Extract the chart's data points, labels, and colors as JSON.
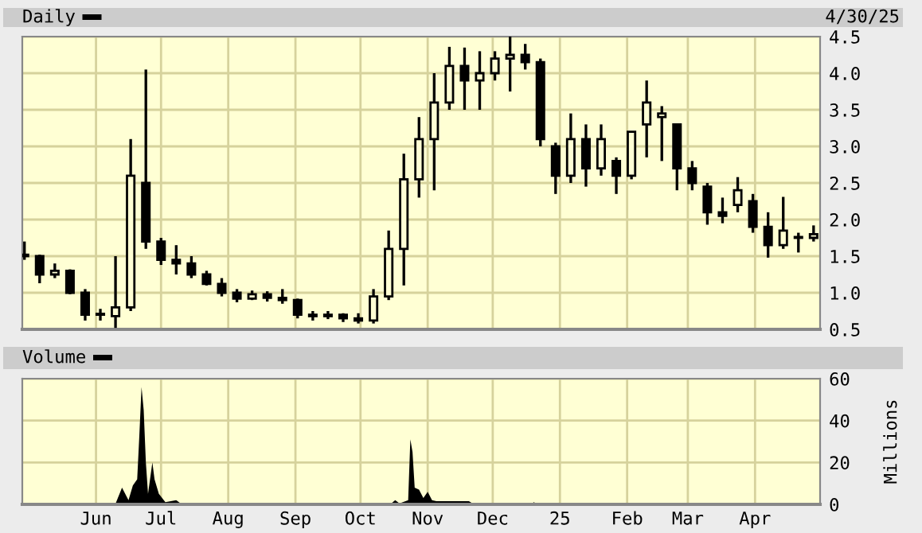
{
  "chart_data": [
    {
      "type": "candlestick",
      "title": "Daily",
      "color": "#000000",
      "grid": true,
      "tick_labels": "y",
      "annotations": [
        "4/30/25"
      ],
      "x": [
        "2024-04-29",
        "2024-05-06",
        "2024-05-13",
        "2024-05-20",
        "2024-05-27",
        "2024-06-03",
        "2024-06-10",
        "2024-06-17",
        "2024-06-24",
        "2024-07-01",
        "2024-07-08",
        "2024-07-15",
        "2024-07-22",
        "2024-07-29",
        "2024-08-05",
        "2024-08-12",
        "2024-08-19",
        "2024-08-26",
        "2024-09-02",
        "2024-09-09",
        "2024-09-16",
        "2024-09-23",
        "2024-09-30",
        "2024-10-07",
        "2024-10-14",
        "2024-10-21",
        "2024-10-28",
        "2024-11-04",
        "2024-11-11",
        "2024-11-18",
        "2024-11-25",
        "2024-12-02",
        "2024-12-09",
        "2024-12-16",
        "2024-12-23",
        "2024-12-30",
        "2025-01-06",
        "2025-01-13",
        "2025-01-20",
        "2025-01-27",
        "2025-02-03",
        "2025-02-10",
        "2025-02-17",
        "2025-02-24",
        "2025-03-03",
        "2025-03-10",
        "2025-03-17",
        "2025-03-24",
        "2025-03-31",
        "2025-04-07",
        "2025-04-14",
        "2025-04-21",
        "2025-04-28"
      ],
      "ohlc": [
        [
          1.5,
          1.7,
          1.45,
          1.52
        ],
        [
          1.5,
          1.52,
          1.13,
          1.25
        ],
        [
          1.25,
          1.4,
          1.2,
          1.3
        ],
        [
          1.3,
          1.32,
          0.98,
          1.0
        ],
        [
          1.0,
          1.05,
          0.62,
          0.7
        ],
        [
          0.7,
          0.78,
          0.62,
          0.7
        ],
        [
          0.68,
          1.5,
          0.52,
          0.8
        ],
        [
          0.8,
          3.1,
          0.75,
          2.6
        ],
        [
          2.5,
          4.05,
          1.6,
          1.7
        ],
        [
          1.7,
          1.75,
          1.38,
          1.45
        ],
        [
          1.45,
          1.65,
          1.25,
          1.4
        ],
        [
          1.4,
          1.5,
          1.2,
          1.25
        ],
        [
          1.25,
          1.3,
          1.1,
          1.12
        ],
        [
          1.12,
          1.2,
          0.95,
          1.0
        ],
        [
          1.0,
          1.05,
          0.87,
          0.92
        ],
        [
          0.92,
          1.03,
          0.9,
          0.98
        ],
        [
          0.98,
          1.02,
          0.88,
          0.93
        ],
        [
          0.93,
          1.05,
          0.85,
          0.9
        ],
        [
          0.9,
          0.92,
          0.65,
          0.7
        ],
        [
          0.7,
          0.75,
          0.62,
          0.68
        ],
        [
          0.68,
          0.75,
          0.64,
          0.7
        ],
        [
          0.7,
          0.72,
          0.6,
          0.65
        ],
        [
          0.65,
          0.72,
          0.58,
          0.62
        ],
        [
          0.62,
          1.05,
          0.58,
          0.95
        ],
        [
          0.95,
          1.85,
          0.9,
          1.6
        ],
        [
          1.6,
          2.9,
          1.1,
          2.55
        ],
        [
          2.55,
          3.4,
          2.3,
          3.1
        ],
        [
          3.1,
          4.0,
          2.4,
          3.6
        ],
        [
          3.6,
          4.36,
          3.5,
          4.1
        ],
        [
          4.1,
          4.35,
          3.5,
          3.9
        ],
        [
          3.9,
          4.3,
          3.5,
          4.0
        ],
        [
          4.0,
          4.3,
          3.9,
          4.2
        ],
        [
          4.2,
          4.5,
          3.75,
          4.25
        ],
        [
          4.25,
          4.4,
          4.05,
          4.15
        ],
        [
          4.15,
          4.2,
          3.0,
          3.1
        ],
        [
          3.0,
          3.05,
          2.35,
          2.6
        ],
        [
          2.6,
          3.45,
          2.5,
          3.1
        ],
        [
          3.1,
          3.3,
          2.45,
          2.7
        ],
        [
          2.7,
          3.3,
          2.6,
          3.1
        ],
        [
          2.8,
          2.85,
          2.35,
          2.6
        ],
        [
          2.6,
          3.2,
          2.55,
          3.2
        ],
        [
          3.3,
          3.9,
          2.85,
          3.6
        ],
        [
          3.4,
          3.55,
          2.8,
          3.45
        ],
        [
          3.3,
          3.3,
          2.4,
          2.7
        ],
        [
          2.7,
          2.8,
          2.4,
          2.5
        ],
        [
          2.45,
          2.5,
          1.93,
          2.1
        ],
        [
          2.1,
          2.3,
          1.95,
          2.05
        ],
        [
          2.2,
          2.58,
          2.1,
          2.4
        ],
        [
          2.25,
          2.35,
          1.82,
          1.9
        ],
        [
          1.9,
          2.1,
          1.48,
          1.65
        ],
        [
          1.65,
          2.31,
          1.6,
          1.85
        ],
        [
          1.75,
          1.82,
          1.55,
          1.75
        ],
        [
          1.75,
          1.92,
          1.7,
          1.8
        ]
      ],
      "xlim": [
        "2024-04-28",
        "2025-05-01"
      ],
      "xticks": [
        "2024-06-01",
        "2024-07-01",
        "2024-08-01",
        "2024-09-01",
        "2024-10-01",
        "2024-11-01",
        "2024-12-01",
        "2025-01-01",
        "2025-02-01",
        "2025-03-01",
        "2025-04-01"
      ],
      "ylim": [
        0.5,
        4.5
      ],
      "yticks": [
        0.5,
        {
          "value": 1,
          "label": "1.0"
        },
        1.5,
        {
          "value": 2,
          "label": "2.0"
        },
        2.5,
        {
          "value": 3,
          "label": "3.0"
        },
        3.5,
        {
          "value": 4,
          "label": "4.0"
        },
        4.5
      ]
    },
    {
      "type": "area",
      "title": "Volume",
      "ylabel": "Millions",
      "color": "#000000",
      "grid": true,
      "x": [
        "2024-04-29",
        "2024-06-10",
        "2024-06-13",
        "2024-06-14",
        "2024-06-16",
        "2024-06-18",
        "2024-06-20",
        "2024-06-21",
        "2024-06-22",
        "2024-06-23",
        "2024-06-24",
        "2024-06-25",
        "2024-06-27",
        "2024-06-28",
        "2024-06-30",
        "2024-07-03",
        "2024-07-08",
        "2024-07-10",
        "2024-10-15",
        "2024-10-17",
        "2024-10-19",
        "2024-10-23",
        "2024-10-24",
        "2024-10-25",
        "2024-10-26",
        "2024-10-28",
        "2024-10-30",
        "2024-11-01",
        "2024-11-03",
        "2024-11-05",
        "2024-11-20",
        "2024-11-22",
        "2024-12-19",
        "2024-12-20",
        "2024-12-21",
        "2025-04-30"
      ],
      "values": [
        0.3,
        0.3,
        8,
        6,
        2,
        9,
        12,
        33,
        56,
        45,
        20,
        5,
        20,
        12,
        5,
        1,
        2,
        0.5,
        0.3,
        2,
        0.5,
        2,
        31,
        25,
        8,
        7,
        3,
        6,
        2,
        1.5,
        1.5,
        0.3,
        0.3,
        1,
        0.3,
        0.3
      ],
      "xlim": [
        "2024-04-28",
        "2025-05-01"
      ],
      "xticks": [
        {
          "value": "2024-06-01",
          "label": "Jun"
        },
        {
          "value": "2024-07-01",
          "label": "Jul"
        },
        {
          "value": "2024-08-01",
          "label": "Aug"
        },
        {
          "value": "2024-09-01",
          "label": "Sep"
        },
        {
          "value": "2024-10-01",
          "label": "Oct"
        },
        {
          "value": "2024-11-01",
          "label": "Nov"
        },
        {
          "value": "2024-12-01",
          "label": "Dec"
        },
        {
          "value": "2025-01-01",
          "label": "25"
        },
        {
          "value": "2025-02-01",
          "label": "Feb"
        },
        {
          "value": "2025-03-01",
          "label": "Mar"
        },
        {
          "value": "2025-04-01",
          "label": "Apr"
        }
      ],
      "ylim": [
        0,
        60
      ],
      "yticks": [
        0,
        20,
        40,
        60
      ]
    }
  ]
}
